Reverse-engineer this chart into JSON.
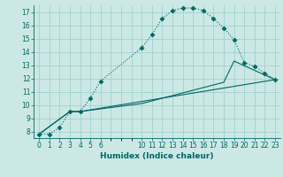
{
  "xlabel": "Humidex (Indice chaleur)",
  "bg_color": "#cce8e4",
  "line_color": "#006666",
  "grid_color": "#99cccc",
  "series1_x": [
    0,
    1,
    2,
    3,
    4,
    5,
    6,
    10,
    11,
    12,
    13,
    14,
    15,
    16,
    17,
    18,
    19,
    20,
    21,
    22,
    23
  ],
  "series1_y": [
    7.8,
    7.8,
    8.3,
    9.5,
    9.5,
    10.5,
    11.8,
    14.3,
    15.3,
    16.5,
    17.1,
    17.3,
    17.3,
    17.1,
    16.5,
    15.8,
    14.9,
    13.2,
    12.9,
    12.4,
    11.9
  ],
  "series2_x": [
    0,
    3,
    4,
    10,
    11,
    12,
    13,
    14,
    15,
    16,
    17,
    18,
    19,
    23
  ],
  "series2_y": [
    7.8,
    9.5,
    9.5,
    10.1,
    10.3,
    10.5,
    10.7,
    10.9,
    11.1,
    11.3,
    11.5,
    11.7,
    13.3,
    11.9
  ],
  "series3_x": [
    0,
    3,
    4,
    23
  ],
  "series3_y": [
    7.8,
    9.5,
    9.5,
    11.9
  ],
  "xlim": [
    -0.5,
    23.5
  ],
  "ylim": [
    7.5,
    17.5
  ],
  "yticks": [
    8,
    9,
    10,
    11,
    12,
    13,
    14,
    15,
    16,
    17
  ],
  "xtick_positions": [
    0,
    1,
    2,
    3,
    4,
    5,
    6,
    10,
    11,
    12,
    13,
    14,
    15,
    16,
    17,
    18,
    19,
    20,
    21,
    22,
    23
  ],
  "xtick_labels": [
    "0",
    "1",
    "2",
    "3",
    "4",
    "5",
    "6",
    "10",
    "11",
    "12",
    "13",
    "14",
    "15",
    "16",
    "17",
    "18",
    "19",
    "20",
    "21",
    "22",
    "23"
  ]
}
